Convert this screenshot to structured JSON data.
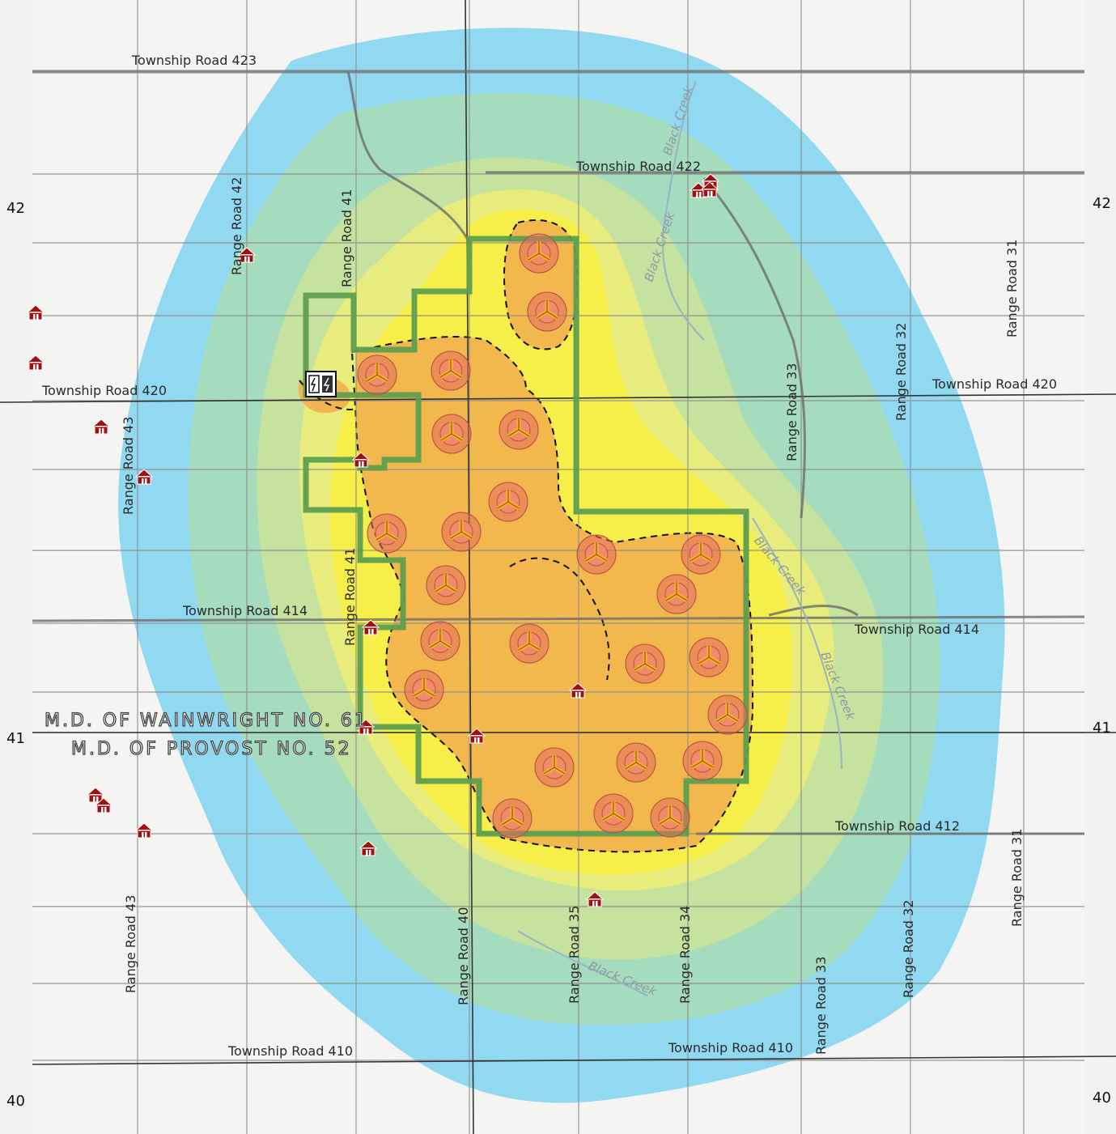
{
  "colors": {
    "contour_outer": "#7fd3ef",
    "contour_2": "#a9dbb8",
    "contour_3": "#c6e29c",
    "contour_4": "#e7ec7c",
    "contour_5": "#f6ef4a",
    "contour_6": "#f2b04e",
    "project_boundary": "#5e9e4f",
    "residence": "#a50e0e",
    "turbine_ring": "#e36b5e",
    "turbine_blade": "#f4b320",
    "creek": "#9ab2c6"
  },
  "icons": {
    "turbine": "wind-turbine-icon",
    "residence": "house-icon",
    "substation": "substation-icon"
  },
  "township_roads": {
    "r423": "Township Road 423",
    "r422": "Township Road 422",
    "r420_w": "Township Road 420",
    "r420_e": "Township Road 420",
    "r414_w": "Township Road 414",
    "r414_e": "Township Road 414",
    "r412": "Township Road 412",
    "r410_w": "Township Road 410",
    "r410_e": "Township Road 410"
  },
  "range_roads": {
    "rr43_n": "Range Road 43",
    "rr43_s": "Range Road 43",
    "rr42": "Range Road 42",
    "rr41_n": "Range Road 41",
    "rr41_s": "Range Road 41",
    "rr40": "Range Road 40",
    "rr35": "Range Road 35",
    "rr34": "Range Road 34",
    "rr33_n": "Range Road 33",
    "rr33_s": "Range Road 33",
    "rr32_n": "Range Road 32",
    "rr32_s": "Range Road 32",
    "rr31_n": "Range Road 31",
    "rr31_s": "Range Road 31"
  },
  "creeks": {
    "c1": "Black Creek",
    "c2": "Black Creek",
    "c3": "Black Creek",
    "c4": "Black Creek",
    "c5": "Black Creek"
  },
  "municipalities": {
    "north": "M.D. OF WAINWRIGHT NO. 61",
    "south": "M.D. OF PROVOST NO. 52"
  },
  "grid_labels": {
    "l42": "42",
    "r42": "42",
    "l41": "41",
    "r41": "41",
    "l40": "40",
    "r40": "40"
  }
}
